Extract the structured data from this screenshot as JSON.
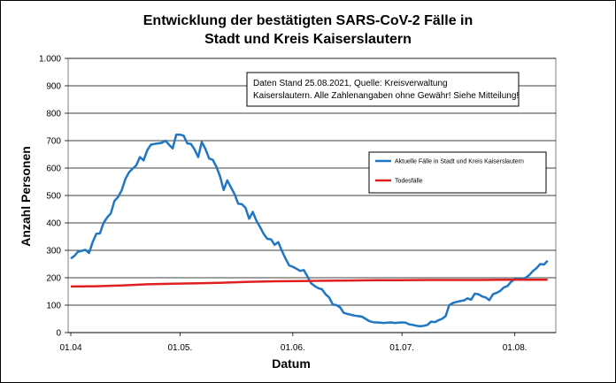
{
  "chart_data": {
    "type": "line",
    "title_line1": "Entwicklung der bestätigten SARS-CoV-2 Fälle in",
    "title_line2": "Stadt und Kreis Kaiserslautern",
    "xlabel": "Datum",
    "ylabel": "Anzahl Personen",
    "ylim": [
      0,
      1000
    ],
    "y_ticks": [
      {
        "value": 0,
        "label": "0"
      },
      {
        "value": 100,
        "label": "100"
      },
      {
        "value": 200,
        "label": "200"
      },
      {
        "value": 300,
        "label": "300"
      },
      {
        "value": 400,
        "label": "400"
      },
      {
        "value": 500,
        "label": "500"
      },
      {
        "value": 600,
        "label": "600"
      },
      {
        "value": 700,
        "label": "700"
      },
      {
        "value": 800,
        "label": "800"
      },
      {
        "value": 900,
        "label": "900"
      },
      {
        "value": 1000,
        "label": "1.000"
      }
    ],
    "xlim": [
      "2021-04-01",
      "2021-08-10"
    ],
    "x_ticks": [
      {
        "date": "2021-04-01",
        "label": "01.04"
      },
      {
        "date": "2021-05-01",
        "label": "01.05."
      },
      {
        "date": "2021-06-01",
        "label": "01.06."
      },
      {
        "date": "2021-07-01",
        "label": "01.07."
      },
      {
        "date": "2021-08-01",
        "label": "01.08."
      }
    ],
    "grid": "horizontal",
    "annotation_line1": "Daten Stand 25.08.2021, Quelle: Kreisverwaltung",
    "annotation_line2": "Kaiserslautern. Alle Zahlenangaben ohne Gewähr! Siehe Mitteilung!",
    "legend_position": "right",
    "series": [
      {
        "name": "Aktuelle Fälle in Stadt und Kreis Kaiserslautern",
        "color": "#1f77c4",
        "points": [
          [
            "2021-04-01",
            270
          ],
          [
            "2021-04-02",
            280
          ],
          [
            "2021-04-03",
            295
          ],
          [
            "2021-04-04",
            298
          ],
          [
            "2021-04-05",
            302
          ],
          [
            "2021-04-06",
            290
          ],
          [
            "2021-04-07",
            330
          ],
          [
            "2021-04-08",
            360
          ],
          [
            "2021-04-09",
            362
          ],
          [
            "2021-04-10",
            400
          ],
          [
            "2021-04-11",
            420
          ],
          [
            "2021-04-12",
            435
          ],
          [
            "2021-04-13",
            480
          ],
          [
            "2021-04-14",
            495
          ],
          [
            "2021-04-15",
            520
          ],
          [
            "2021-04-16",
            560
          ],
          [
            "2021-04-17",
            585
          ],
          [
            "2021-04-18",
            598
          ],
          [
            "2021-04-19",
            610
          ],
          [
            "2021-04-20",
            640
          ],
          [
            "2021-04-21",
            628
          ],
          [
            "2021-04-22",
            665
          ],
          [
            "2021-04-23",
            685
          ],
          [
            "2021-04-24",
            688
          ],
          [
            "2021-04-25",
            690
          ],
          [
            "2021-04-26",
            692
          ],
          [
            "2021-04-27",
            700
          ],
          [
            "2021-04-28",
            685
          ],
          [
            "2021-04-29",
            672
          ],
          [
            "2021-04-30",
            722
          ],
          [
            "2021-05-01",
            722
          ],
          [
            "2021-05-02",
            718
          ],
          [
            "2021-05-03",
            690
          ],
          [
            "2021-05-04",
            688
          ],
          [
            "2021-05-05",
            668
          ],
          [
            "2021-05-06",
            640
          ],
          [
            "2021-05-07",
            695
          ],
          [
            "2021-05-08",
            670
          ],
          [
            "2021-05-09",
            635
          ],
          [
            "2021-05-10",
            630
          ],
          [
            "2021-05-11",
            605
          ],
          [
            "2021-05-12",
            570
          ],
          [
            "2021-05-13",
            520
          ],
          [
            "2021-05-14",
            555
          ],
          [
            "2021-05-15",
            530
          ],
          [
            "2021-05-16",
            505
          ],
          [
            "2021-05-17",
            470
          ],
          [
            "2021-05-18",
            468
          ],
          [
            "2021-05-19",
            455
          ],
          [
            "2021-05-20",
            415
          ],
          [
            "2021-05-21",
            440
          ],
          [
            "2021-05-22",
            408
          ],
          [
            "2021-05-23",
            385
          ],
          [
            "2021-05-24",
            360
          ],
          [
            "2021-05-25",
            342
          ],
          [
            "2021-05-26",
            340
          ],
          [
            "2021-05-27",
            320
          ],
          [
            "2021-05-28",
            330
          ],
          [
            "2021-05-29",
            298
          ],
          [
            "2021-05-30",
            270
          ],
          [
            "2021-05-31",
            245
          ],
          [
            "2021-06-01",
            240
          ],
          [
            "2021-06-02",
            233
          ],
          [
            "2021-06-03",
            225
          ],
          [
            "2021-06-04",
            228
          ],
          [
            "2021-06-05",
            205
          ],
          [
            "2021-06-06",
            180
          ],
          [
            "2021-06-07",
            170
          ],
          [
            "2021-06-08",
            162
          ],
          [
            "2021-06-09",
            158
          ],
          [
            "2021-06-10",
            140
          ],
          [
            "2021-06-11",
            128
          ],
          [
            "2021-06-12",
            102
          ],
          [
            "2021-06-13",
            100
          ],
          [
            "2021-06-14",
            92
          ],
          [
            "2021-06-15",
            72
          ],
          [
            "2021-06-16",
            68
          ],
          [
            "2021-06-17",
            65
          ],
          [
            "2021-06-18",
            62
          ],
          [
            "2021-06-19",
            60
          ],
          [
            "2021-06-20",
            58
          ],
          [
            "2021-06-21",
            50
          ],
          [
            "2021-06-22",
            42
          ],
          [
            "2021-06-23",
            38
          ],
          [
            "2021-06-24",
            37
          ],
          [
            "2021-06-25",
            36
          ],
          [
            "2021-06-26",
            35
          ],
          [
            "2021-06-27",
            36
          ],
          [
            "2021-06-28",
            37
          ],
          [
            "2021-06-29",
            35
          ],
          [
            "2021-06-30",
            36
          ],
          [
            "2021-07-01",
            37
          ],
          [
            "2021-07-02",
            36
          ],
          [
            "2021-07-03",
            30
          ],
          [
            "2021-07-04",
            28
          ],
          [
            "2021-07-05",
            25
          ],
          [
            "2021-07-06",
            23
          ],
          [
            "2021-07-07",
            25
          ],
          [
            "2021-07-08",
            28
          ],
          [
            "2021-07-09",
            40
          ],
          [
            "2021-07-10",
            38
          ],
          [
            "2021-07-11",
            45
          ],
          [
            "2021-07-12",
            50
          ],
          [
            "2021-07-13",
            60
          ],
          [
            "2021-07-14",
            100
          ],
          [
            "2021-07-15",
            108
          ],
          [
            "2021-07-16",
            112
          ],
          [
            "2021-07-17",
            115
          ],
          [
            "2021-07-18",
            117
          ],
          [
            "2021-07-19",
            125
          ],
          [
            "2021-07-20",
            120
          ],
          [
            "2021-07-21",
            142
          ],
          [
            "2021-07-22",
            140
          ],
          [
            "2021-07-23",
            132
          ],
          [
            "2021-07-24",
            128
          ],
          [
            "2021-07-25",
            118
          ],
          [
            "2021-07-26",
            140
          ],
          [
            "2021-07-27",
            145
          ],
          [
            "2021-07-28",
            152
          ],
          [
            "2021-07-29",
            165
          ],
          [
            "2021-07-30",
            170
          ],
          [
            "2021-07-31",
            185
          ],
          [
            "2021-08-01",
            195
          ],
          [
            "2021-08-02",
            197
          ],
          [
            "2021-08-03",
            195
          ],
          [
            "2021-08-04",
            200
          ],
          [
            "2021-08-05",
            210
          ],
          [
            "2021-08-06",
            225
          ],
          [
            "2021-08-07",
            235
          ],
          [
            "2021-08-08",
            250
          ],
          [
            "2021-08-09",
            248
          ],
          [
            "2021-08-10",
            262
          ]
        ]
      },
      {
        "name": "Todesfälle",
        "color": "#e02020",
        "points": [
          [
            "2021-04-01",
            168
          ],
          [
            "2021-04-08",
            169
          ],
          [
            "2021-04-15",
            172
          ],
          [
            "2021-04-22",
            176
          ],
          [
            "2021-04-29",
            178
          ],
          [
            "2021-05-06",
            180
          ],
          [
            "2021-05-13",
            182
          ],
          [
            "2021-05-20",
            185
          ],
          [
            "2021-05-27",
            187
          ],
          [
            "2021-06-03",
            188
          ],
          [
            "2021-06-10",
            189
          ],
          [
            "2021-06-17",
            190
          ],
          [
            "2021-06-24",
            191
          ],
          [
            "2021-07-01",
            191
          ],
          [
            "2021-07-08",
            192
          ],
          [
            "2021-07-15",
            192
          ],
          [
            "2021-07-22",
            192
          ],
          [
            "2021-07-29",
            193
          ],
          [
            "2021-08-05",
            193
          ],
          [
            "2021-08-10",
            193
          ]
        ]
      }
    ]
  }
}
